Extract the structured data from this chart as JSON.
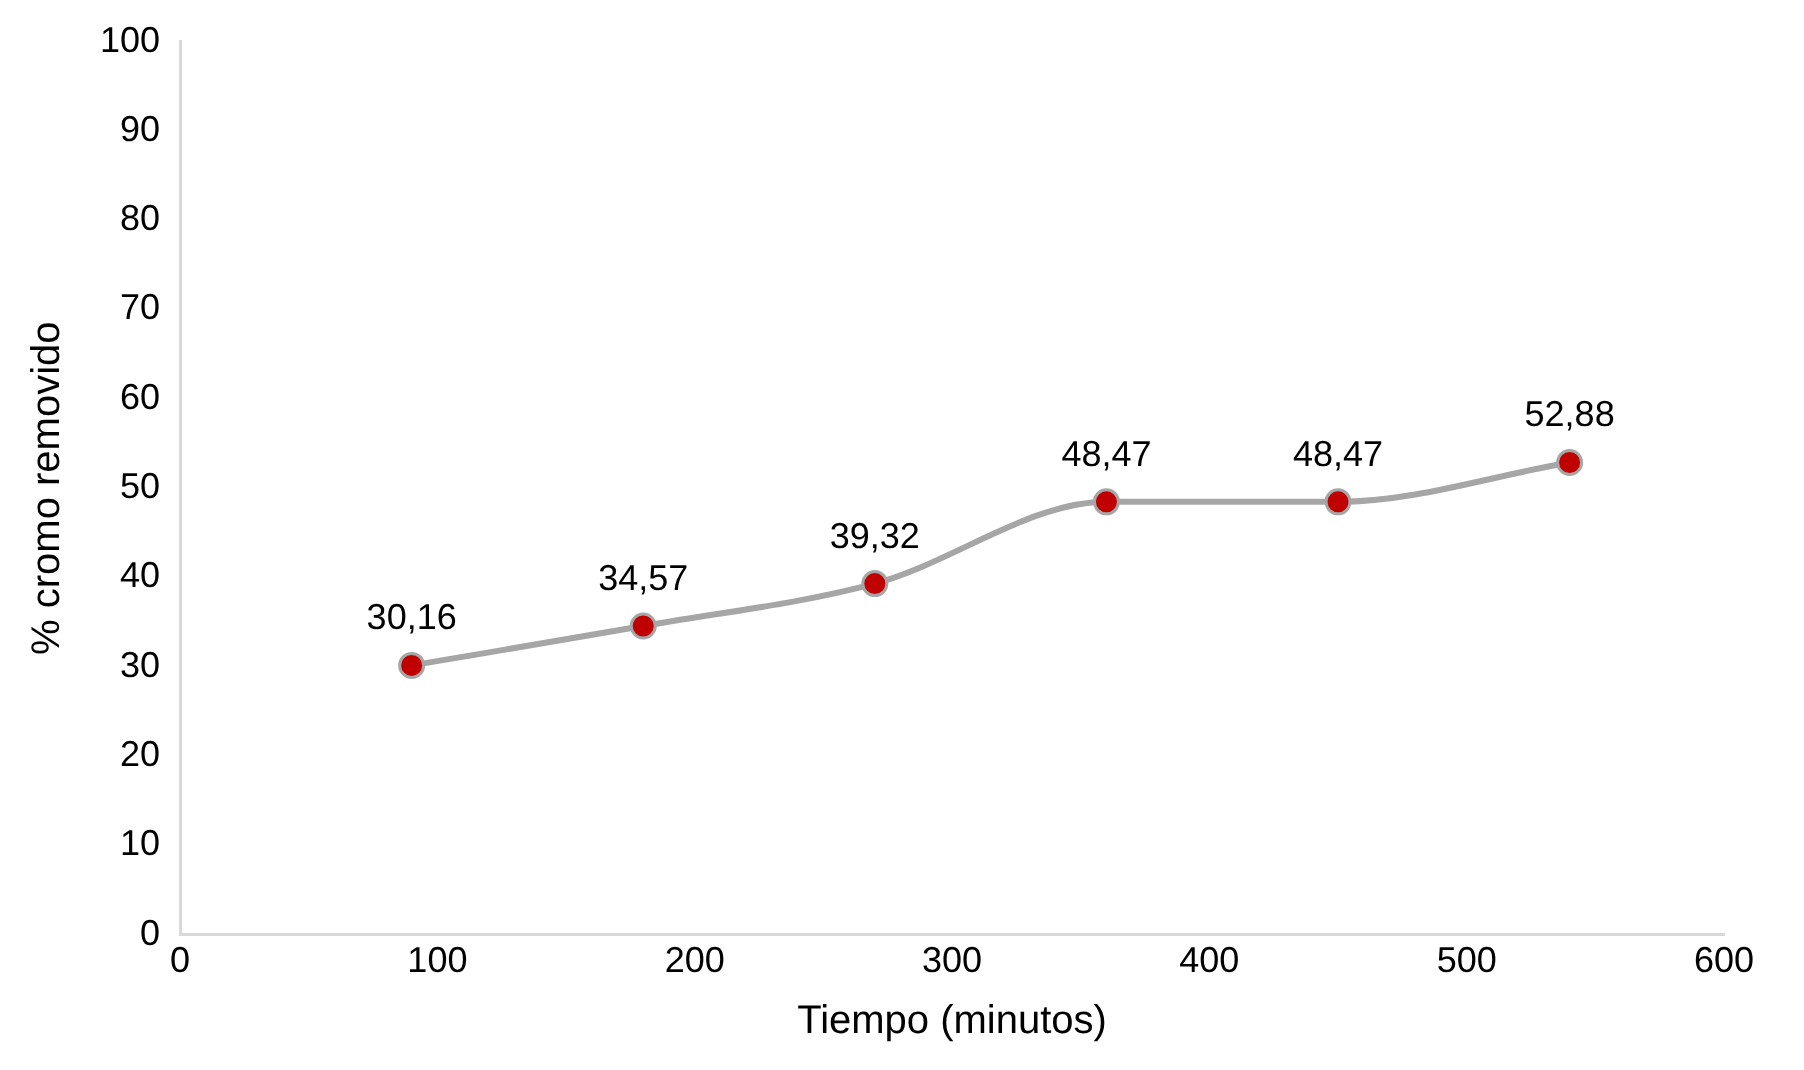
{
  "chart_data": {
    "type": "line",
    "xlabel": "Tiempo (minutos)",
    "ylabel": "% cromo removido",
    "x": [
      90,
      180,
      270,
      360,
      450,
      540
    ],
    "series": [
      {
        "color": "#a6a6a6",
        "colors": [
          "#c00000",
          "#c00000",
          "#c00000",
          "#c00000",
          "#c00000",
          "#c00000"
        ],
        "values": [
          30.16,
          34.57,
          39.32,
          48.47,
          48.47,
          52.88
        ],
        "value_labels": [
          "30,16",
          "34,57",
          "39,32",
          "48,47",
          "48,47",
          "52,88"
        ]
      }
    ],
    "xlim": [
      0,
      600
    ],
    "xticks": [
      0,
      100,
      200,
      300,
      400,
      500,
      600
    ],
    "ylim": [
      0,
      100
    ],
    "yticks": [
      0,
      10,
      20,
      30,
      40,
      50,
      60,
      70,
      80,
      90,
      100
    ],
    "grid": false,
    "legend": false,
    "marker": "circle",
    "line_style": "solid"
  }
}
